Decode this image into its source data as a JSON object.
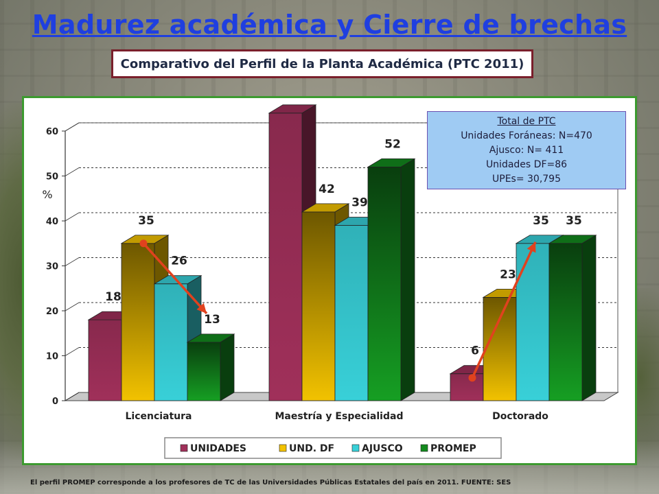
{
  "title": "Madurez académica y Cierre de brechas",
  "subtitle": "Comparativo del Perfil de la Planta Académica (PTC 2011)",
  "info_box": {
    "title": "Total de PTC",
    "lines": [
      "Unidades Foráneas: N=470",
      "Ajusco: N= 411",
      "Unidades DF=86",
      "UPEs= 30,795"
    ]
  },
  "footnote": "El perfil PROMEP corresponde a los profesores de TC de las Universidades Públicas Estatales del país en 2011. FUENTE: SES",
  "chart_data": {
    "type": "bar",
    "categories": [
      "Licenciatura",
      "Maestría y Especialidad",
      "Doctorado"
    ],
    "series": [
      {
        "name": "UNIDADES",
        "values": [
          18,
          64,
          6
        ],
        "color": "#a0305a"
      },
      {
        "name": "UND. DF",
        "values": [
          35,
          42,
          23
        ],
        "color": "#f2c200"
      },
      {
        "name": "AJUSCO",
        "values": [
          26,
          39,
          35
        ],
        "color": "#38d0d8"
      },
      {
        "name": "PROMEP",
        "values": [
          13,
          52,
          35
        ],
        "color": "#138a1e"
      }
    ],
    "ylabel": "%",
    "ylim": [
      0,
      60
    ],
    "yticks": [
      0,
      10,
      20,
      30,
      40,
      50,
      60
    ],
    "grid": true,
    "legend": "bottom",
    "arrows": [
      {
        "category": "Licenciatura",
        "from_series": "UND. DF",
        "to_series": "PROMEP",
        "color": "#e0421e"
      },
      {
        "category": "Doctorado",
        "from_series": "UNIDADES",
        "to_series": "AJUSCO",
        "color": "#e0421e"
      }
    ]
  }
}
